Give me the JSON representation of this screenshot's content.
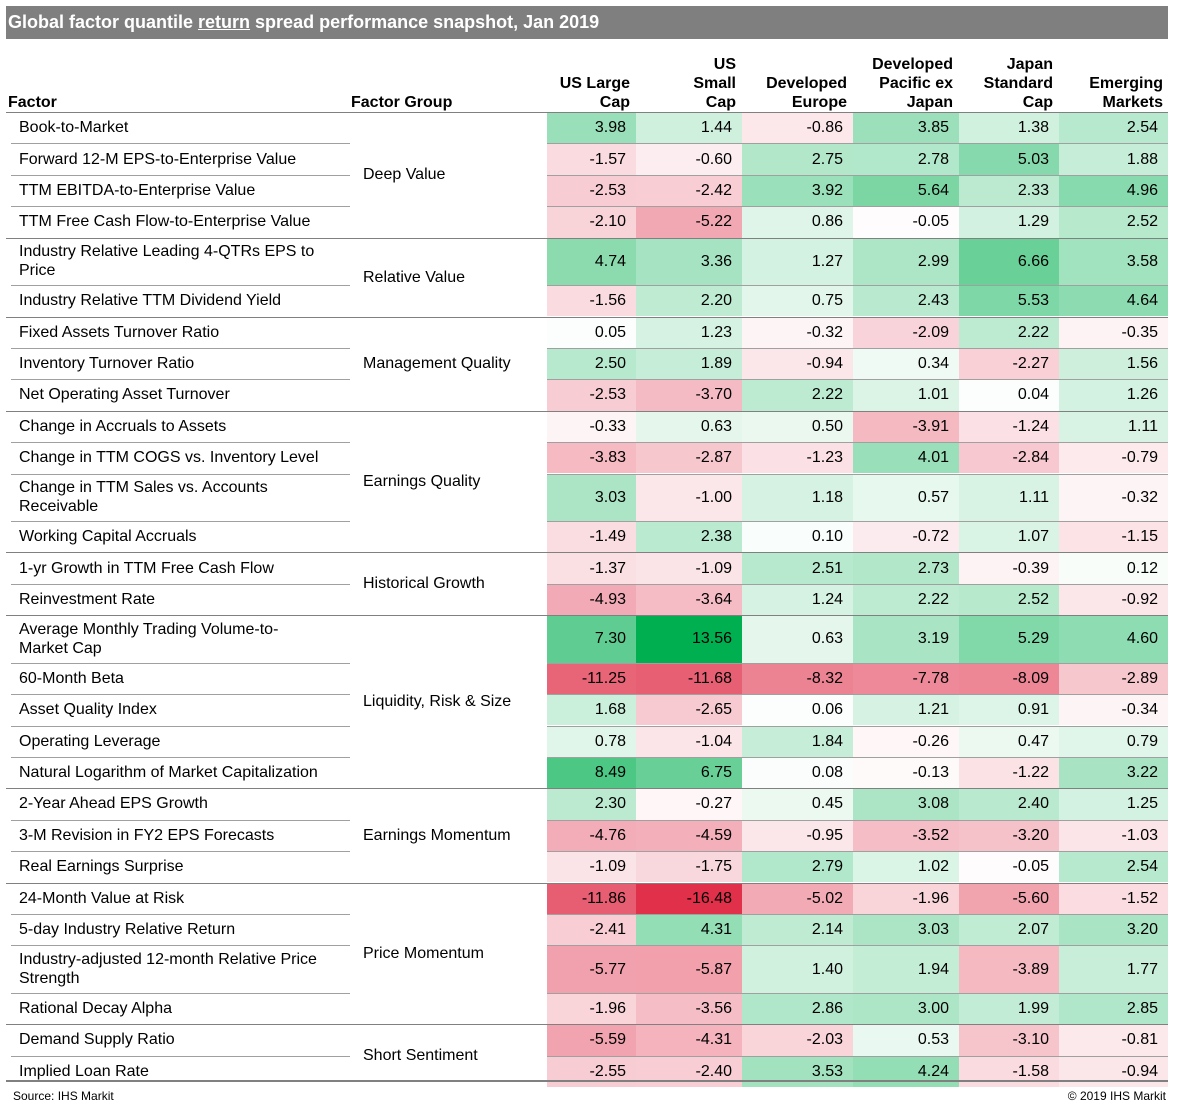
{
  "title": {
    "before": "Global factor quantile ",
    "underlined": "return",
    "after": " spread performance snapshot, Jan 2019"
  },
  "footer": {
    "source": "Source: IHS Markit",
    "copyright": "© 2019 IHS Markit"
  },
  "colors": {
    "title_bg": "#7f7f7f",
    "positive": "#00b050",
    "negative": "#e0304a",
    "neutral": "#ffffff"
  },
  "chart_data": {
    "type": "table",
    "title": "Global factor quantile return spread performance snapshot, Jan 2019",
    "columns": {
      "factor": "Factor",
      "group": "Factor Group",
      "markets": [
        [
          "US Large",
          "Cap"
        ],
        [
          "US",
          "Small",
          "Cap"
        ],
        [
          "Developed",
          "Europe"
        ],
        [
          "Developed",
          "Pacific ex",
          "Japan"
        ],
        [
          "Japan",
          "Standard",
          "Cap"
        ],
        [
          "Emerging",
          "Markets"
        ]
      ]
    },
    "groups": [
      {
        "name": "Deep Value",
        "rows": [
          {
            "factor": [
              "Book-to-Market"
            ],
            "values": [
              3.98,
              1.44,
              -0.86,
              3.85,
              1.38,
              2.54
            ]
          },
          {
            "factor": [
              "Forward 12-M EPS-to-Enterprise Value"
            ],
            "values": [
              -1.57,
              -0.6,
              2.75,
              2.78,
              5.03,
              1.88
            ]
          },
          {
            "factor": [
              "TTM EBITDA-to-Enterprise Value"
            ],
            "values": [
              -2.53,
              -2.42,
              3.92,
              5.64,
              2.33,
              4.96
            ]
          },
          {
            "factor": [
              "TTM Free Cash Flow-to-Enterprise Value"
            ],
            "values": [
              -2.1,
              -5.22,
              0.86,
              -0.05,
              1.29,
              2.52
            ]
          }
        ]
      },
      {
        "name": "Relative Value",
        "rows": [
          {
            "factor": [
              "Industry Relative Leading 4-QTRs EPS to",
              "Price"
            ],
            "values": [
              4.74,
              3.36,
              1.27,
              2.99,
              6.66,
              3.58
            ]
          },
          {
            "factor": [
              "Industry Relative TTM Dividend Yield"
            ],
            "values": [
              -1.56,
              2.2,
              0.75,
              2.43,
              5.53,
              4.64
            ]
          }
        ]
      },
      {
        "name": "Management Quality",
        "rows": [
          {
            "factor": [
              "Fixed Assets Turnover Ratio"
            ],
            "values": [
              0.05,
              1.23,
              -0.32,
              -2.09,
              2.22,
              -0.35
            ]
          },
          {
            "factor": [
              "Inventory Turnover Ratio"
            ],
            "values": [
              2.5,
              1.89,
              -0.94,
              0.34,
              -2.27,
              1.56
            ]
          },
          {
            "factor": [
              "Net Operating Asset Turnover"
            ],
            "values": [
              -2.53,
              -3.7,
              2.22,
              1.01,
              0.04,
              1.26
            ]
          }
        ]
      },
      {
        "name": "Earnings Quality",
        "rows": [
          {
            "factor": [
              "Change in Accruals to Assets"
            ],
            "values": [
              -0.33,
              0.63,
              0.5,
              -3.91,
              -1.24,
              1.11
            ]
          },
          {
            "factor": [
              "Change in TTM COGS vs. Inventory Level"
            ],
            "values": [
              -3.83,
              -2.87,
              -1.23,
              4.01,
              -2.84,
              -0.79
            ]
          },
          {
            "factor": [
              "Change in TTM Sales vs. Accounts",
              "Receivable"
            ],
            "values": [
              3.03,
              -1.0,
              1.18,
              0.57,
              1.11,
              -0.32
            ]
          },
          {
            "factor": [
              "Working Capital Accruals"
            ],
            "values": [
              -1.49,
              2.38,
              0.1,
              -0.72,
              1.07,
              -1.15
            ]
          }
        ]
      },
      {
        "name": "Historical Growth",
        "rows": [
          {
            "factor": [
              "1-yr Growth in TTM Free Cash Flow"
            ],
            "values": [
              -1.37,
              -1.09,
              2.51,
              2.73,
              -0.39,
              0.12
            ]
          },
          {
            "factor": [
              "Reinvestment Rate"
            ],
            "values": [
              -4.93,
              -3.64,
              1.24,
              2.22,
              2.52,
              -0.92
            ]
          }
        ]
      },
      {
        "name": "Liquidity, Risk & Size",
        "rows": [
          {
            "factor": [
              "Average Monthly Trading Volume-to-",
              "Market Cap"
            ],
            "values": [
              7.3,
              13.56,
              0.63,
              3.19,
              5.29,
              4.6
            ]
          },
          {
            "factor": [
              "60-Month Beta"
            ],
            "values": [
              -11.25,
              -11.68,
              -8.32,
              -7.78,
              -8.09,
              -2.89
            ]
          },
          {
            "factor": [
              "Asset Quality Index"
            ],
            "values": [
              1.68,
              -2.65,
              0.06,
              1.21,
              0.91,
              -0.34
            ]
          },
          {
            "factor": [
              "Operating Leverage"
            ],
            "values": [
              0.78,
              -1.04,
              1.84,
              -0.26,
              0.47,
              0.79
            ]
          },
          {
            "factor": [
              "Natural Logarithm of Market Capitalization"
            ],
            "values": [
              8.49,
              6.75,
              0.08,
              -0.13,
              -1.22,
              3.22
            ]
          }
        ]
      },
      {
        "name": "Earnings Momentum",
        "rows": [
          {
            "factor": [
              "2-Year Ahead EPS Growth"
            ],
            "values": [
              2.3,
              -0.27,
              0.45,
              3.08,
              2.4,
              1.25
            ]
          },
          {
            "factor": [
              "3-M Revision in FY2 EPS Forecasts"
            ],
            "values": [
              -4.76,
              -4.59,
              -0.95,
              -3.52,
              -3.2,
              -1.03
            ]
          },
          {
            "factor": [
              "Real Earnings Surprise"
            ],
            "values": [
              -1.09,
              -1.75,
              2.79,
              1.02,
              -0.05,
              2.54
            ]
          }
        ]
      },
      {
        "name": "Price Momentum",
        "rows": [
          {
            "factor": [
              "24-Month Value at Risk"
            ],
            "values": [
              -11.86,
              -16.48,
              -5.02,
              -1.96,
              -5.6,
              -1.52
            ]
          },
          {
            "factor": [
              "5-day Industry Relative Return"
            ],
            "values": [
              -2.41,
              4.31,
              2.14,
              3.03,
              2.07,
              3.2
            ]
          },
          {
            "factor": [
              "Industry-adjusted 12-month Relative Price",
              "Strength"
            ],
            "values": [
              -5.77,
              -5.87,
              1.4,
              1.94,
              -3.89,
              1.77
            ]
          },
          {
            "factor": [
              "Rational Decay Alpha"
            ],
            "values": [
              -1.96,
              -3.56,
              2.86,
              3.0,
              1.99,
              2.85
            ]
          }
        ]
      },
      {
        "name": "Short Sentiment",
        "rows": [
          {
            "factor": [
              "Demand Supply Ratio"
            ],
            "values": [
              -5.59,
              -4.31,
              -2.03,
              0.53,
              -3.1,
              -0.81
            ]
          },
          {
            "factor": [
              "Implied Loan Rate"
            ],
            "values": [
              -2.55,
              -2.4,
              3.53,
              4.24,
              -1.58,
              -0.94
            ]
          }
        ]
      }
    ]
  }
}
